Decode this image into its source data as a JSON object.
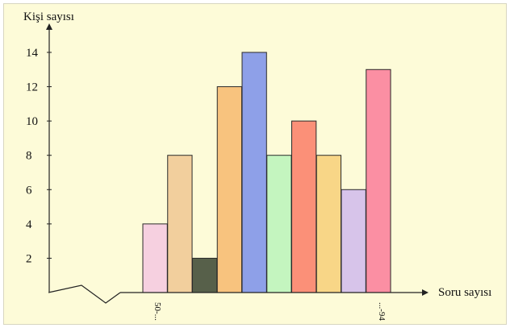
{
  "chart_data": {
    "type": "bar",
    "ylabel": "Kişi sayısı",
    "xlabel": "Soru sayısı",
    "y_ticks": [
      2,
      4,
      6,
      8,
      10,
      12,
      14
    ],
    "ylim": [
      0,
      14
    ],
    "x_tick_labels": [
      "50-...",
      "...-94"
    ],
    "values": [
      4,
      8,
      2,
      12,
      14,
      8,
      10,
      8,
      6,
      13
    ],
    "colors": [
      "#f6d0e0",
      "#f2cf9d",
      "#57604a",
      "#f8c37e",
      "#8ea0e8",
      "#c4f5bf",
      "#fb9078",
      "#f8d687",
      "#d7c4ea",
      "#fb8fa3"
    ],
    "axis_break": true,
    "grid": false
  }
}
